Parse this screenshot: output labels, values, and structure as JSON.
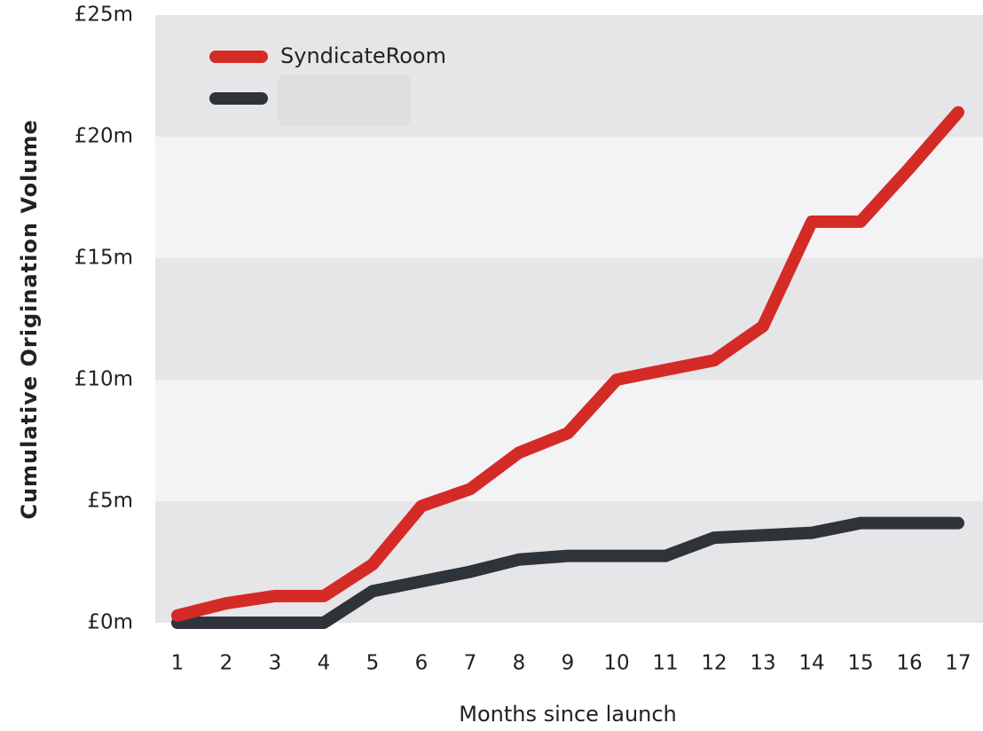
{
  "chart_data": {
    "type": "line",
    "x_label": "Months since launch",
    "y_label": "Cumulative Origination Volume",
    "categories": [
      "1",
      "2",
      "3",
      "4",
      "5",
      "6",
      "7",
      "8",
      "9",
      "10",
      "11",
      "12",
      "13",
      "14",
      "15",
      "16",
      "17"
    ],
    "series": [
      {
        "name": "SyndicateRoom",
        "color": "#d52b27",
        "values": [
          0.3,
          0.8,
          1.1,
          1.1,
          2.4,
          4.8,
          5.5,
          7.0,
          7.8,
          10.0,
          10.4,
          10.8,
          12.2,
          16.5,
          16.5,
          18.7,
          21.0
        ]
      },
      {
        "color": "#2e3439",
        "values": [
          0,
          0,
          0,
          0,
          1.3,
          1.7,
          2.1,
          2.6,
          2.75,
          2.75,
          2.75,
          3.5,
          3.6,
          3.7,
          4.1,
          4.1,
          4.1
        ]
      }
    ],
    "ylim": [
      0,
      25
    ],
    "yticks": [
      {
        "value": 0,
        "label": "£0m"
      },
      {
        "value": 5,
        "label": "£5m"
      },
      {
        "value": 10,
        "label": "£10m"
      },
      {
        "value": 15,
        "label": "£15m"
      },
      {
        "value": 20,
        "label": "£20m"
      },
      {
        "value": 25,
        "label": "£25m"
      }
    ],
    "band_colors": [
      "#e6e6e9",
      "#f3f3f5"
    ],
    "legend": "top-left"
  }
}
